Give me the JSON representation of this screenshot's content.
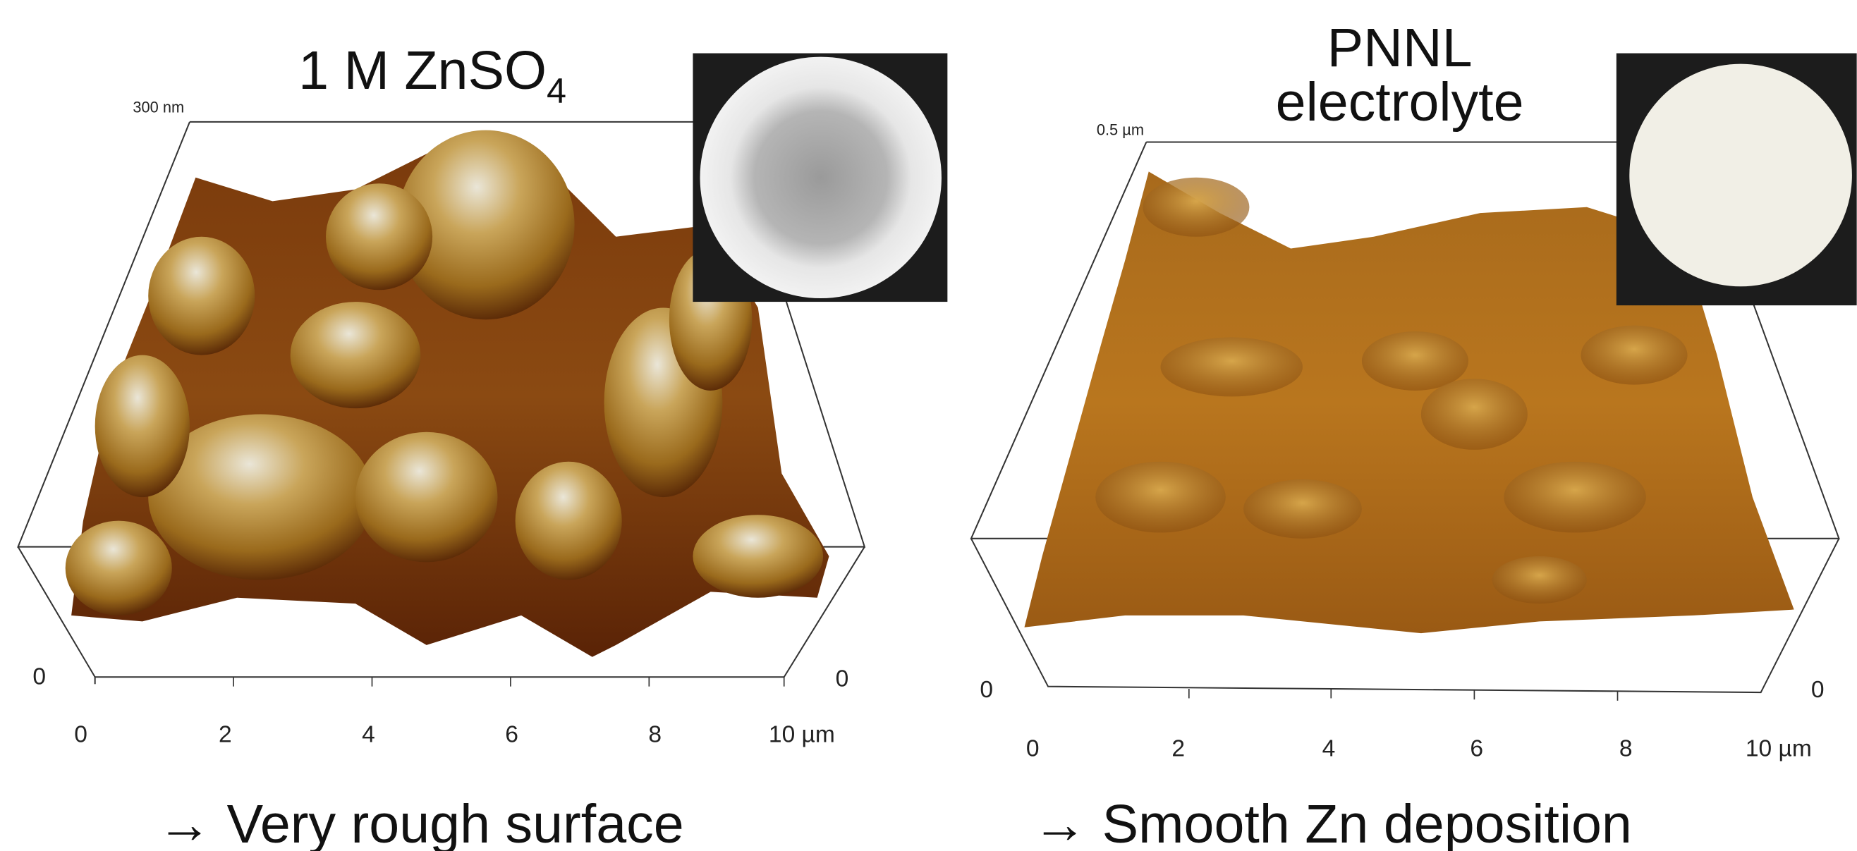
{
  "panels": [
    {
      "title": "1 M ZnSO",
      "title_sub": "4",
      "z_label": "300 nm",
      "x_ticks": [
        "0",
        "2",
        "4",
        "6",
        "8",
        "10 µm"
      ],
      "y_ticks": [
        "0",
        "0"
      ],
      "caption": "→ Very rough surface"
    },
    {
      "title_lines": [
        "PNNL",
        "electrolyte"
      ],
      "z_label": "0.5 µm",
      "x_ticks": [
        "0",
        "2",
        "4",
        "6",
        "8",
        "10 µm"
      ],
      "y_ticks": [
        "0",
        "0"
      ],
      "caption": "→ Smooth Zn deposition"
    }
  ]
}
